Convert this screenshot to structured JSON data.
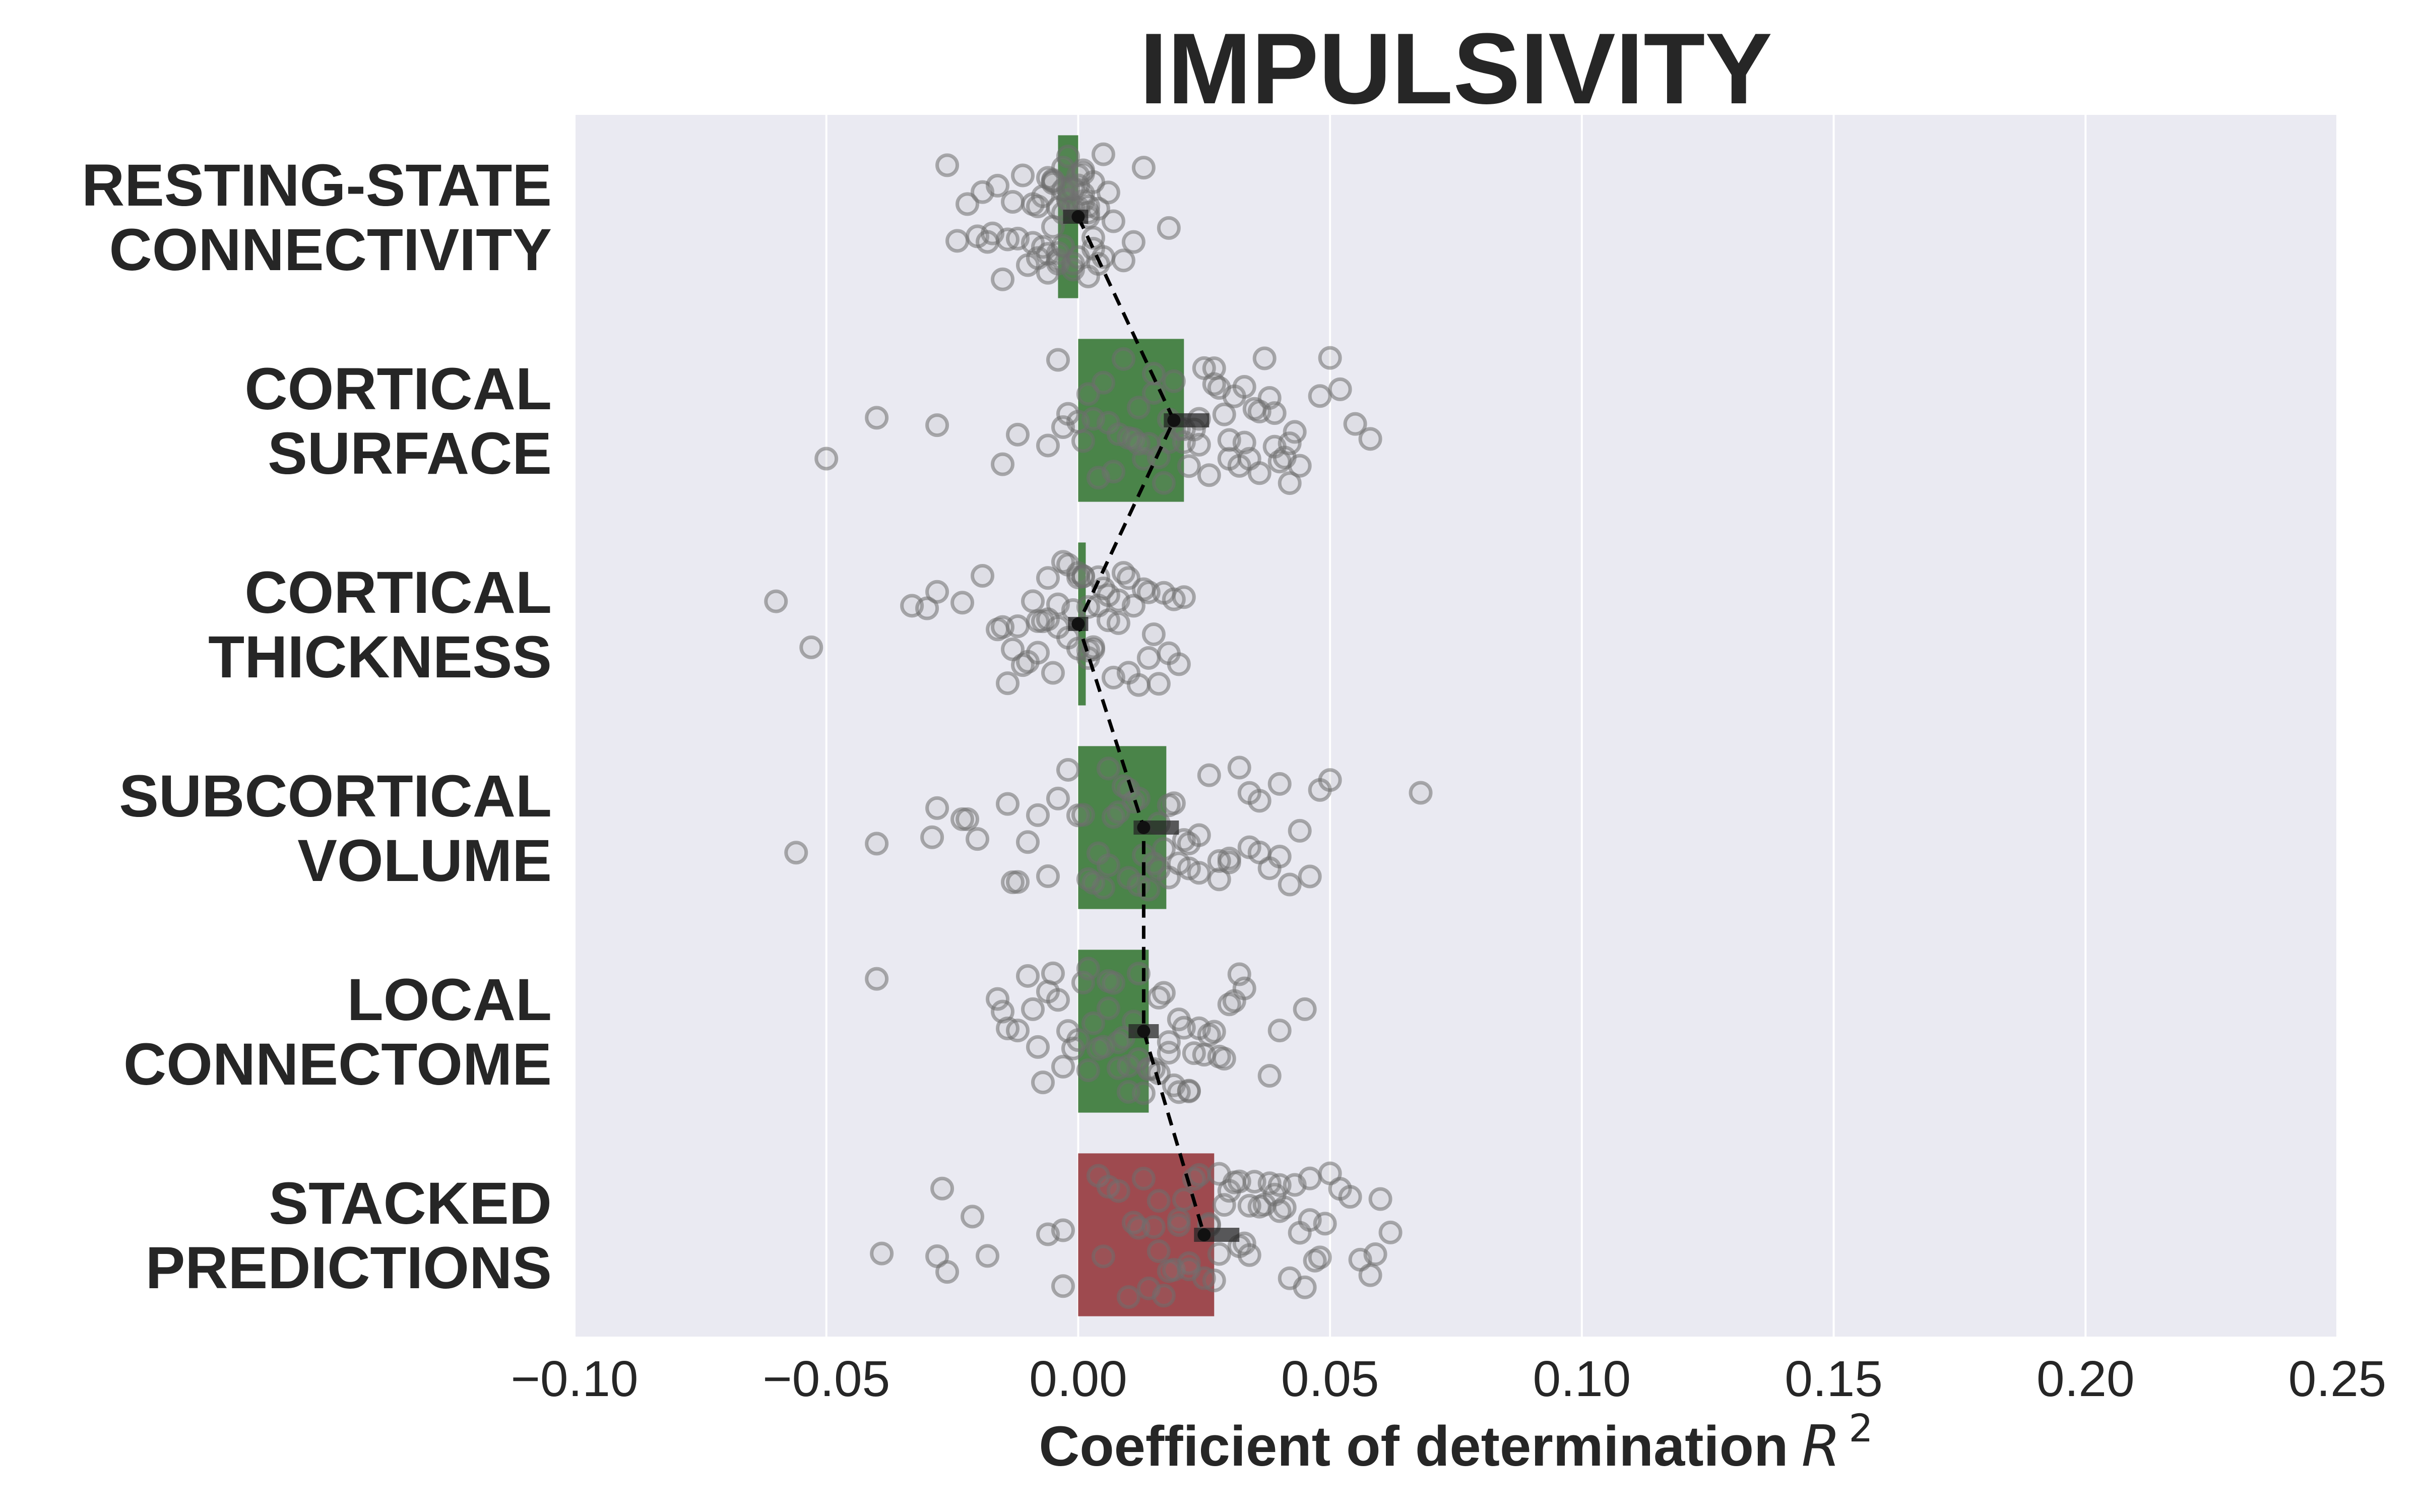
{
  "chart_data": {
    "type": "bar",
    "title": "IMPULSIVITY",
    "xlabel_text": "Coefficient of determination",
    "xlabel_math": "R",
    "xlabel_sup": "2",
    "xlim": [
      -0.1,
      0.25
    ],
    "xticks": [
      -0.1,
      -0.05,
      0.0,
      0.05,
      0.1,
      0.15,
      0.2,
      0.25
    ],
    "xtick_labels": [
      "−0.10",
      "−0.05",
      "0.00",
      "0.05",
      "0.10",
      "0.15",
      "0.20",
      "0.25"
    ],
    "grid": true,
    "background": "#EAEAF2",
    "categories": [
      [
        "RESTING-STATE",
        "CONNECTIVITY"
      ],
      [
        "CORTICAL",
        "SURFACE"
      ],
      [
        "CORTICAL",
        "THICKNESS"
      ],
      [
        "SUBCORTICAL",
        "VOLUME"
      ],
      [
        "LOCAL",
        "CONNECTOME"
      ],
      [
        "STACKED",
        "PREDICTIONS"
      ]
    ],
    "values": [
      -0.004,
      0.021,
      0.0015,
      0.0175,
      0.014,
      0.027
    ],
    "bar_colors": [
      "#4A8449",
      "#4A8449",
      "#4A8449",
      "#4A8449",
      "#4A8449",
      "#9E4A4F"
    ],
    "means": [
      0.0,
      0.019,
      0.0,
      0.013,
      0.013,
      0.025
    ],
    "ci": [
      [
        -0.003,
        0.002
      ],
      [
        0.017,
        0.026
      ],
      [
        -0.002,
        0.002
      ],
      [
        0.011,
        0.02
      ],
      [
        0.01,
        0.016
      ],
      [
        0.023,
        0.032
      ]
    ],
    "points": [
      [
        -0.02,
        -0.019,
        -0.017,
        -0.015,
        -0.014,
        -0.012,
        -0.011,
        -0.01,
        -0.009,
        -0.008,
        -0.007,
        -0.007,
        -0.006,
        -0.006,
        -0.005,
        -0.005,
        -0.005,
        -0.004,
        -0.004,
        -0.004,
        -0.003,
        -0.003,
        -0.003,
        -0.002,
        -0.002,
        -0.002,
        -0.001,
        -0.001,
        -0.001,
        0.0,
        0.0,
        0.0,
        0.001,
        0.001,
        0.001,
        0.002,
        0.002,
        0.002,
        0.003,
        0.003,
        0.004,
        0.004,
        0.005,
        0.006,
        0.007,
        0.009,
        0.011,
        0.013,
        0.018,
        -0.026,
        -0.024,
        -0.022,
        -0.018,
        -0.016,
        -0.013,
        -0.009,
        -0.008,
        -0.006,
        -0.004,
        -0.002,
        0.0,
        0.001,
        0.003,
        0.005,
        -0.003,
        -0.001,
        0.002,
        -0.005
      ],
      [
        -0.05,
        -0.04,
        -0.028,
        -0.015,
        -0.012,
        -0.006,
        -0.004,
        -0.003,
        -0.002,
        0.0,
        0.001,
        0.002,
        0.003,
        0.004,
        0.005,
        0.006,
        0.007,
        0.008,
        0.009,
        0.01,
        0.011,
        0.012,
        0.013,
        0.014,
        0.015,
        0.016,
        0.017,
        0.018,
        0.019,
        0.02,
        0.021,
        0.022,
        0.023,
        0.024,
        0.025,
        0.026,
        0.027,
        0.028,
        0.029,
        0.03,
        0.031,
        0.032,
        0.033,
        0.034,
        0.035,
        0.036,
        0.037,
        0.038,
        0.039,
        0.04,
        0.041,
        0.042,
        0.043,
        0.044,
        0.048,
        0.05,
        0.052,
        0.055,
        0.058,
        0.012,
        0.018,
        0.024,
        0.03,
        0.036,
        0.042,
        0.015,
        0.021,
        0.027,
        0.033,
        0.039
      ],
      [
        -0.06,
        -0.053,
        -0.033,
        -0.03,
        -0.028,
        -0.023,
        -0.019,
        -0.016,
        -0.014,
        -0.013,
        -0.012,
        -0.011,
        -0.01,
        -0.009,
        -0.008,
        -0.007,
        -0.006,
        -0.005,
        -0.004,
        -0.003,
        -0.002,
        -0.001,
        0.0,
        0.0,
        0.001,
        0.001,
        0.002,
        0.002,
        0.003,
        0.004,
        0.005,
        0.006,
        0.007,
        0.008,
        0.009,
        0.01,
        0.011,
        0.012,
        0.013,
        0.014,
        0.015,
        0.016,
        0.017,
        0.018,
        0.019,
        0.02,
        0.021,
        -0.015,
        -0.008,
        -0.004,
        0.0,
        0.003,
        0.006,
        0.01,
        0.014,
        -0.002,
        0.004,
        0.008,
        -0.006,
        0.002
      ],
      [
        -0.056,
        -0.04,
        -0.029,
        -0.028,
        -0.023,
        -0.022,
        -0.02,
        -0.014,
        -0.013,
        -0.012,
        -0.01,
        -0.008,
        -0.006,
        -0.004,
        -0.002,
        0.0,
        0.001,
        0.003,
        0.005,
        0.006,
        0.007,
        0.008,
        0.009,
        0.01,
        0.011,
        0.012,
        0.013,
        0.014,
        0.015,
        0.016,
        0.017,
        0.018,
        0.019,
        0.02,
        0.021,
        0.022,
        0.024,
        0.026,
        0.028,
        0.03,
        0.032,
        0.034,
        0.036,
        0.038,
        0.04,
        0.042,
        0.044,
        0.046,
        0.048,
        0.05,
        0.068,
        0.002,
        0.006,
        0.012,
        0.018,
        0.024,
        0.03,
        0.036,
        0.004,
        0.01,
        0.016,
        0.022,
        0.028,
        0.034,
        0.04
      ],
      [
        -0.04,
        -0.016,
        -0.015,
        -0.014,
        -0.012,
        -0.01,
        -0.009,
        -0.008,
        -0.007,
        -0.006,
        -0.005,
        -0.004,
        -0.003,
        -0.002,
        -0.001,
        0.0,
        0.001,
        0.002,
        0.003,
        0.004,
        0.005,
        0.006,
        0.007,
        0.008,
        0.009,
        0.01,
        0.011,
        0.012,
        0.013,
        0.014,
        0.015,
        0.016,
        0.017,
        0.018,
        0.019,
        0.02,
        0.021,
        0.022,
        0.023,
        0.024,
        0.025,
        0.026,
        0.027,
        0.028,
        0.029,
        0.03,
        0.031,
        0.032,
        0.033,
        0.038,
        0.04,
        0.045,
        0.002,
        0.006,
        0.01,
        0.014,
        0.018,
        0.022,
        0.008,
        0.012,
        0.016,
        0.02
      ],
      [
        -0.039,
        -0.028,
        -0.027,
        -0.026,
        -0.021,
        -0.018,
        -0.006,
        -0.003,
        -0.003,
        0.004,
        0.005,
        0.006,
        0.008,
        0.01,
        0.011,
        0.012,
        0.013,
        0.014,
        0.015,
        0.016,
        0.017,
        0.018,
        0.019,
        0.02,
        0.021,
        0.022,
        0.023,
        0.024,
        0.025,
        0.026,
        0.027,
        0.028,
        0.029,
        0.03,
        0.031,
        0.032,
        0.033,
        0.034,
        0.035,
        0.036,
        0.037,
        0.038,
        0.039,
        0.04,
        0.041,
        0.042,
        0.043,
        0.044,
        0.045,
        0.046,
        0.047,
        0.048,
        0.049,
        0.05,
        0.052,
        0.054,
        0.056,
        0.058,
        0.059,
        0.06,
        0.062,
        0.016,
        0.022,
        0.028,
        0.034,
        0.04,
        0.046,
        0.02,
        0.026,
        0.032
      ]
    ]
  }
}
